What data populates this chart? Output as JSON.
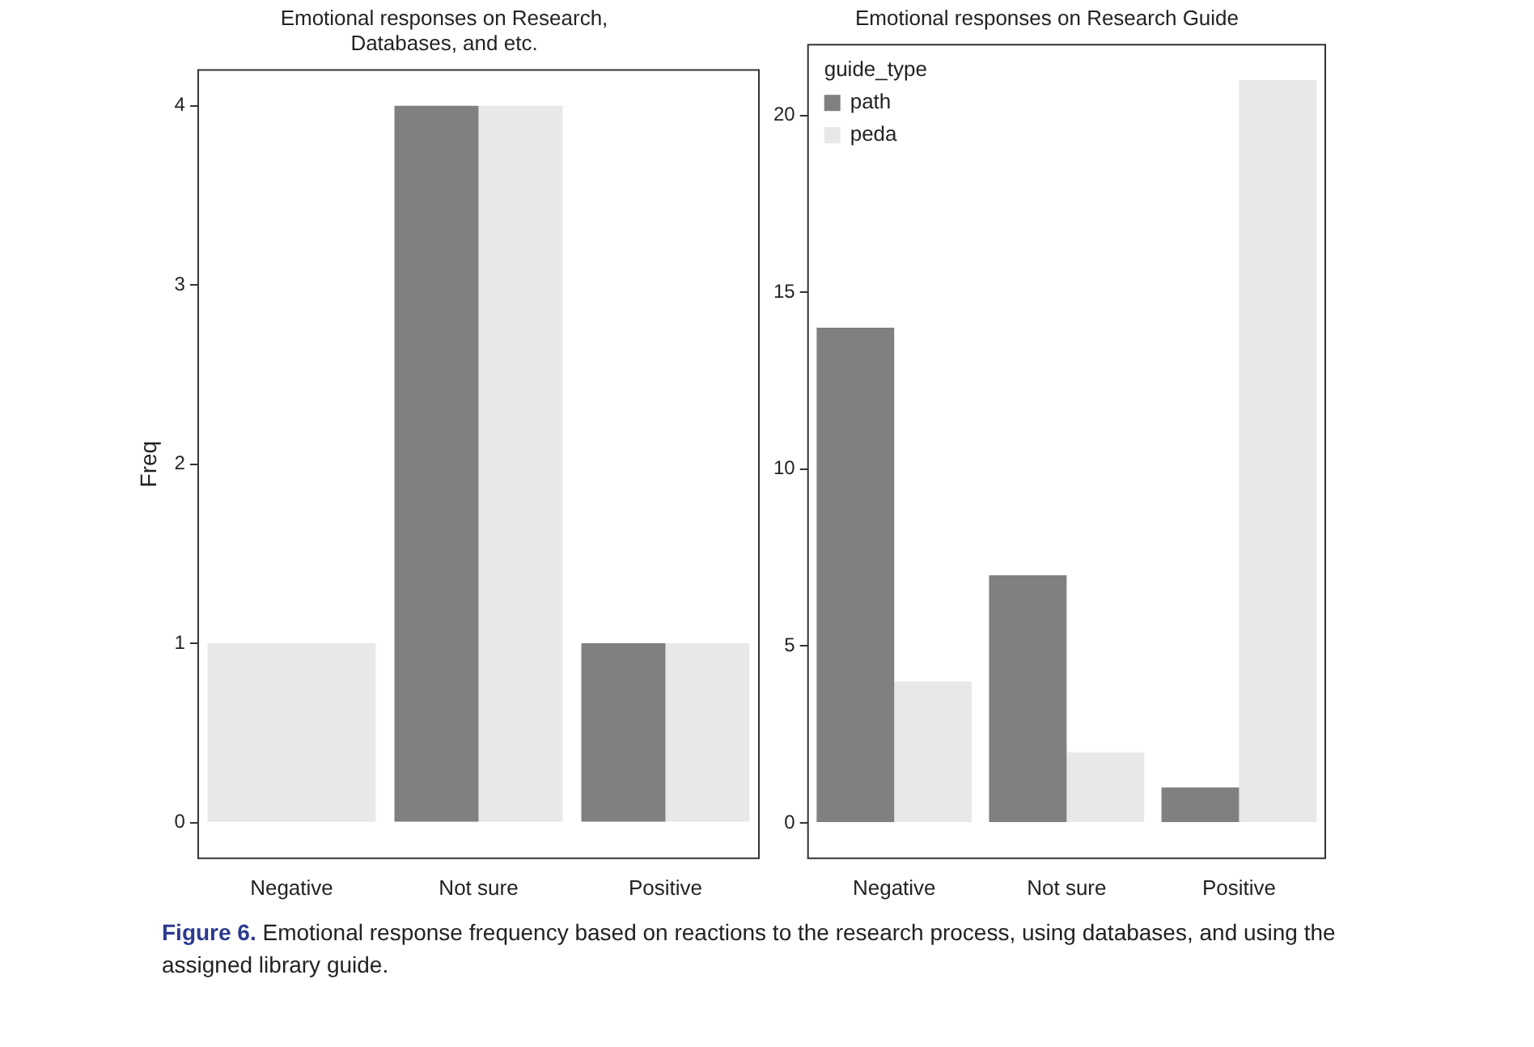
{
  "chart_data": [
    {
      "type": "bar",
      "title": "Emotional responses on Research,\nDatabases, and etc.",
      "ylabel": "Freq",
      "categories": [
        "Negative",
        "Not sure",
        "Positive"
      ],
      "series": [
        {
          "color": "#808083",
          "values": [
            null,
            4,
            1
          ]
        },
        {
          "color": "#e8e8e8",
          "values": [
            1,
            4,
            1
          ]
        }
      ],
      "ylim": [
        -0.2,
        4.2
      ],
      "yticks": [
        0,
        1,
        2,
        3,
        4
      ],
      "grid": false,
      "legend": false,
      "annotations": [
        "Figure 6.",
        "Emotional response frequency based on reactions to the research process, using databases, and using the assigned library guide."
      ]
    },
    {
      "type": "bar",
      "title": "Emotional responses on Research Guide",
      "categories": [
        "Negative",
        "Not sure",
        "Positive"
      ],
      "legend_title": "guide_type",
      "series": [
        {
          "name": "path",
          "color": "#808083",
          "values": [
            14,
            7,
            1
          ]
        },
        {
          "name": "peda",
          "color": "#e8e8e8",
          "values": [
            4,
            2,
            21
          ]
        }
      ],
      "ylim": [
        -1,
        22
      ],
      "yticks": [
        0,
        5,
        10,
        15,
        20
      ],
      "grid": false,
      "legend": "top left"
    }
  ]
}
